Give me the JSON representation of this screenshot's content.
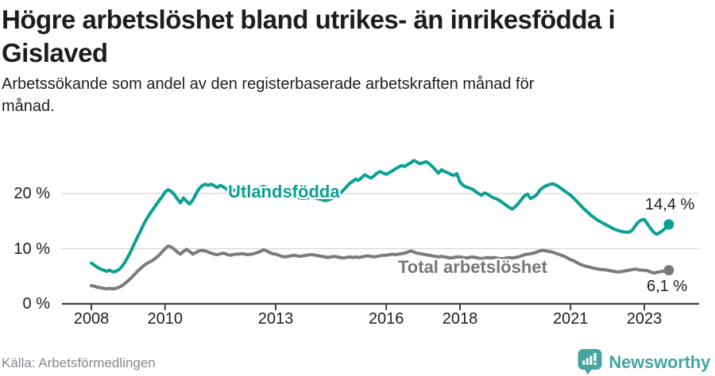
{
  "header": {
    "title_lines": [
      "Högre arbetslöshet bland utrikes- än inrikesfödda i",
      "Gislaved"
    ],
    "subtitle_lines": [
      "Arbetssökande som andel av den registerbaserade arbetskraften månad för",
      "månad."
    ]
  },
  "footer": {
    "source": "Källa: Arbetsförmedlingen",
    "brand": "Newsworthy",
    "brand_icon": "newsworthy-bubble-barchart-icon"
  },
  "colors": {
    "accent_teal": "#0aa094",
    "line_gray": "#7b7b7b",
    "text_dark": "#1d1d1b",
    "grid": "#d8d8d8",
    "axis": "#3f3f3f",
    "source_gray": "#84888d",
    "brand_teal": "#47a5a1"
  },
  "chart_data": {
    "type": "line",
    "title": "Högre arbetslöshet bland utrikes- än inrikesfödda i Gislaved",
    "subtitle": "Arbetssökande som andel av den registerbaserade arbetskraften månad för månad.",
    "unit": "%",
    "frequency": "monthly",
    "x_start": "2008-01",
    "x_end": "2023-09",
    "xlabel": "",
    "ylabel": "",
    "ylim": [
      0,
      27
    ],
    "grid": true,
    "legend_position": "inline-labels",
    "y_ticks": [
      {
        "value": 0,
        "label": "0 %"
      },
      {
        "value": 10,
        "label": "10 %"
      },
      {
        "value": 20,
        "label": "20 %"
      }
    ],
    "x_ticks": [
      {
        "value": 2008,
        "label": "2008"
      },
      {
        "value": 2010,
        "label": "2010"
      },
      {
        "value": 2013,
        "label": "2013"
      },
      {
        "value": 2016,
        "label": "2016"
      },
      {
        "value": 2018,
        "label": "2018"
      },
      {
        "value": 2021,
        "label": "2021"
      },
      {
        "value": 2023,
        "label": "2023"
      }
    ],
    "series": [
      {
        "name": "Total arbetslöshet",
        "color": "#7b7b7b",
        "end_label": "6,1 %",
        "end_value": 6.1,
        "values": [
          3.3,
          3.2,
          3.0,
          2.9,
          2.8,
          2.7,
          2.8,
          2.7,
          2.8,
          3.0,
          3.3,
          3.7,
          4.2,
          4.7,
          5.3,
          5.9,
          6.4,
          6.9,
          7.3,
          7.6,
          7.9,
          8.3,
          8.8,
          9.4,
          10.0,
          10.5,
          10.3,
          9.9,
          9.4,
          9.0,
          9.5,
          9.9,
          9.5,
          9.0,
          9.3,
          9.6,
          9.7,
          9.6,
          9.4,
          9.2,
          9.0,
          8.9,
          9.1,
          9.2,
          9.0,
          8.8,
          8.9,
          9.0,
          9.0,
          9.1,
          9.0,
          8.9,
          9.0,
          9.1,
          9.3,
          9.5,
          9.8,
          9.6,
          9.3,
          9.1,
          9.0,
          8.8,
          8.6,
          8.5,
          8.6,
          8.7,
          8.8,
          8.7,
          8.6,
          8.7,
          8.8,
          8.9,
          8.9,
          8.8,
          8.7,
          8.6,
          8.5,
          8.4,
          8.5,
          8.6,
          8.5,
          8.4,
          8.3,
          8.4,
          8.5,
          8.4,
          8.5,
          8.4,
          8.5,
          8.6,
          8.7,
          8.6,
          8.5,
          8.6,
          8.7,
          8.8,
          8.8,
          8.9,
          9.0,
          8.9,
          9.0,
          9.1,
          9.2,
          9.4,
          9.6,
          9.4,
          9.2,
          9.1,
          9.0,
          8.9,
          8.8,
          8.7,
          8.6,
          8.5,
          8.6,
          8.5,
          8.4,
          8.3,
          8.4,
          8.5,
          8.5,
          8.4,
          8.3,
          8.4,
          8.5,
          8.4,
          8.3,
          8.2,
          8.3,
          8.4,
          8.3,
          8.4,
          8.3,
          8.2,
          8.2,
          8.3,
          8.4,
          8.3,
          8.4,
          8.5,
          8.7,
          8.9,
          9.0,
          9.1,
          9.2,
          9.4,
          9.6,
          9.7,
          9.6,
          9.5,
          9.4,
          9.2,
          9.0,
          8.8,
          8.6,
          8.3,
          8.0,
          7.8,
          7.5,
          7.2,
          7.0,
          6.8,
          6.7,
          6.5,
          6.4,
          6.3,
          6.2,
          6.2,
          6.1,
          6.0,
          5.9,
          5.8,
          5.8,
          5.9,
          6.0,
          6.1,
          6.2,
          6.3,
          6.2,
          6.1,
          6.1,
          6.0,
          5.8,
          5.6,
          5.7,
          5.8,
          5.9,
          6.0,
          6.1
        ]
      },
      {
        "name": "Utlandsfödda",
        "color": "#0aa094",
        "end_label": "14,4 %",
        "end_value": 14.4,
        "values": [
          7.4,
          7.0,
          6.6,
          6.3,
          6.1,
          5.9,
          6.1,
          5.8,
          5.9,
          6.2,
          6.8,
          7.6,
          8.6,
          9.7,
          10.9,
          12.1,
          13.2,
          14.4,
          15.4,
          16.3,
          17.1,
          17.9,
          18.7,
          19.4,
          20.3,
          20.7,
          20.4,
          19.8,
          19.0,
          18.3,
          19.2,
          18.6,
          18.1,
          18.8,
          19.9,
          20.8,
          21.4,
          21.7,
          21.5,
          21.7,
          21.4,
          21.1,
          21.5,
          21.2,
          20.8,
          20.6,
          20.7,
          20.5,
          20.3,
          20.2,
          20.3,
          20.4,
          20.5,
          20.7,
          20.9,
          21.1,
          21.3,
          21.1,
          20.7,
          20.3,
          20.0,
          19.8,
          19.6,
          19.5,
          19.4,
          19.3,
          19.4,
          19.3,
          19.2,
          19.1,
          19.2,
          19.3,
          19.3,
          19.2,
          19.0,
          18.9,
          18.7,
          18.8,
          19.0,
          19.3,
          19.6,
          20.0,
          20.6,
          21.2,
          21.8,
          22.2,
          22.6,
          22.4,
          22.9,
          23.4,
          23.1,
          22.8,
          23.2,
          23.7,
          24.0,
          23.7,
          23.5,
          23.8,
          24.1,
          24.5,
          24.8,
          25.1,
          24.9,
          25.3,
          25.6,
          26.0,
          25.7,
          25.4,
          25.6,
          25.8,
          25.4,
          24.9,
          24.3,
          23.7,
          24.3,
          24.0,
          23.8,
          23.5,
          23.3,
          23.6,
          22.1,
          21.5,
          21.2,
          21.0,
          20.8,
          20.4,
          20.0,
          19.7,
          20.1,
          19.9,
          19.5,
          19.2,
          19.0,
          18.7,
          18.3,
          17.9,
          17.5,
          17.2,
          17.6,
          18.2,
          18.9,
          19.6,
          19.9,
          19.1,
          19.4,
          19.8,
          20.6,
          21.1,
          21.4,
          21.6,
          21.8,
          21.6,
          21.3,
          20.9,
          20.5,
          20.1,
          19.7,
          19.2,
          18.6,
          18.0,
          17.4,
          16.9,
          16.4,
          15.9,
          15.5,
          15.1,
          14.8,
          14.5,
          14.2,
          13.9,
          13.6,
          13.4,
          13.2,
          13.1,
          13.0,
          13.0,
          13.3,
          14.1,
          14.8,
          15.2,
          15.3,
          14.5,
          13.7,
          13.0,
          12.6,
          12.9,
          13.3,
          13.8,
          14.4
        ]
      }
    ]
  }
}
